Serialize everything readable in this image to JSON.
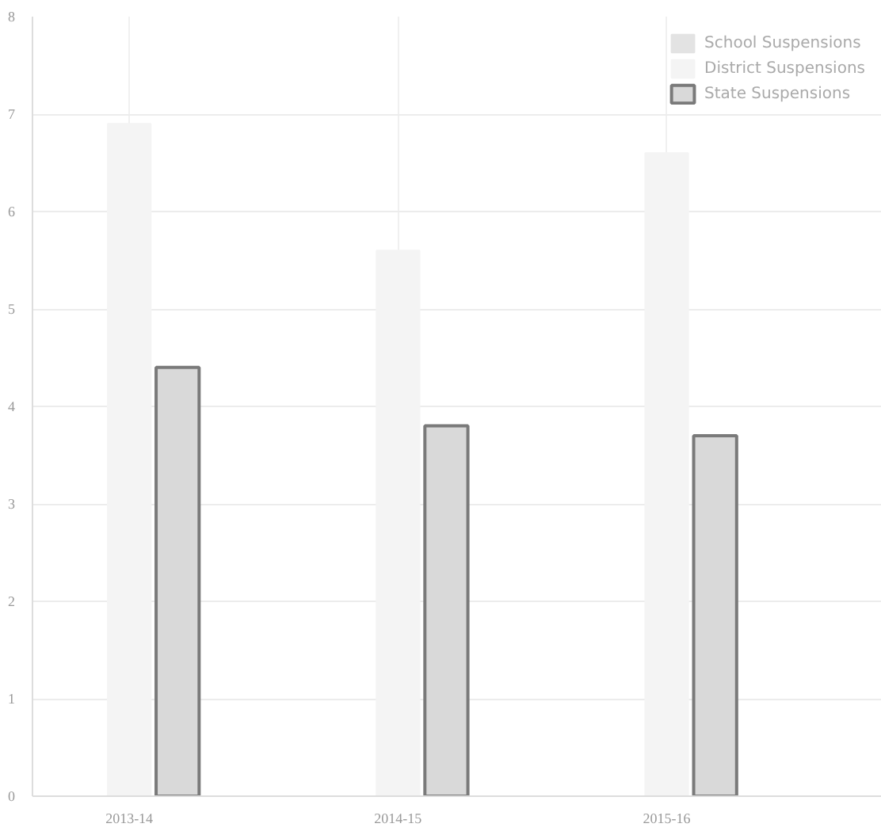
{
  "chart_data": {
    "type": "bar",
    "categories": [
      "2013-14",
      "2014-15",
      "2015-16"
    ],
    "series": [
      {
        "name": "School Suspensions",
        "color": "#e3e3e3",
        "values": [
          null,
          null,
          null
        ]
      },
      {
        "name": "District Suspensions",
        "color": "#f4f4f4",
        "values": [
          6.9,
          5.6,
          6.6
        ]
      },
      {
        "name": "State Suspensions",
        "color": "#d9d9d9",
        "values": [
          4.4,
          3.8,
          3.7
        ]
      }
    ],
    "ylim": [
      0,
      8
    ],
    "yticks": [
      0,
      1,
      2,
      3,
      4,
      5,
      6,
      7,
      8
    ],
    "grid": true,
    "legend": "top right"
  }
}
